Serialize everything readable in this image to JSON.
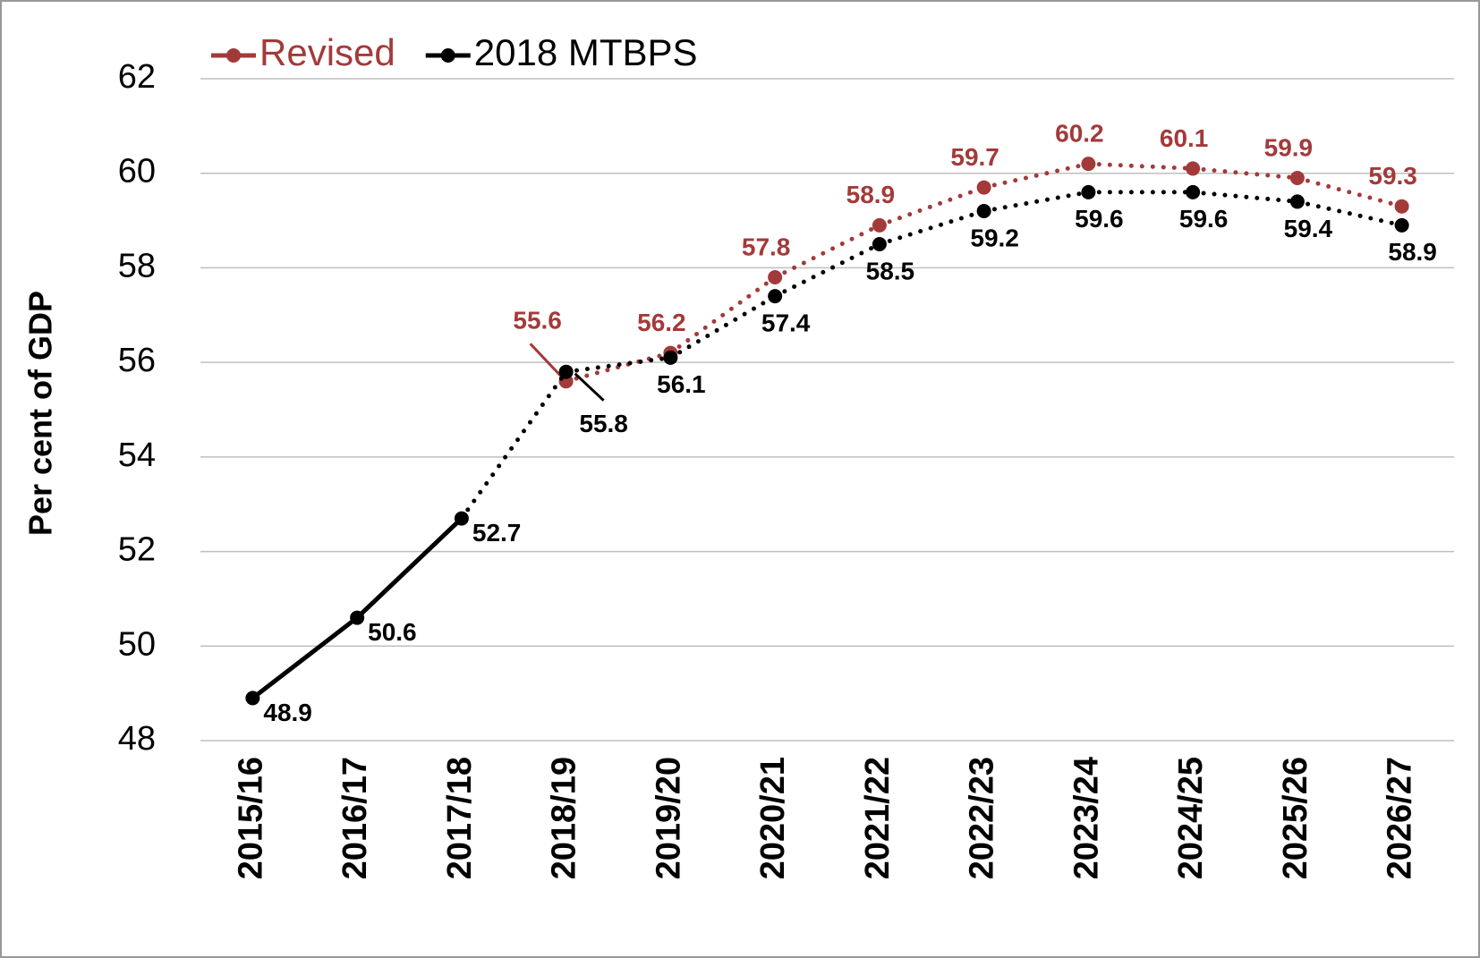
{
  "chart_data": {
    "type": "line",
    "ylabel": "Per cent of GDP",
    "categories": [
      "2015/16",
      "2016/17",
      "2017/18",
      "2018/19",
      "2019/20",
      "2020/21",
      "2021/22",
      "2022/23",
      "2023/24",
      "2024/25",
      "2025/26",
      "2026/27"
    ],
    "series": [
      {
        "name": "Revised",
        "color": "#a33a3a",
        "style": "dotted",
        "values": [
          null,
          null,
          null,
          55.6,
          56.2,
          57.8,
          58.9,
          59.7,
          60.2,
          60.1,
          59.9,
          59.3
        ]
      },
      {
        "name": "2018 MTBPS",
        "color": "#000000",
        "style": "dotted",
        "solid_through": "2017/18",
        "values": [
          48.9,
          50.6,
          52.7,
          55.8,
          56.1,
          57.4,
          58.5,
          59.2,
          59.6,
          59.6,
          59.4,
          58.9
        ]
      }
    ],
    "ylim": [
      48,
      62
    ],
    "yticks": [
      48,
      50,
      52,
      54,
      56,
      58,
      60,
      62
    ],
    "grid": true,
    "legend": "top-left"
  }
}
